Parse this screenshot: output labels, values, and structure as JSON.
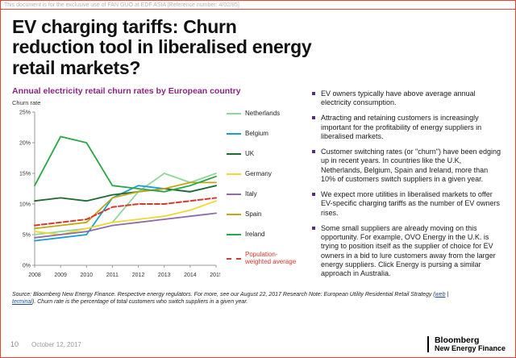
{
  "page": {
    "confidential_notice": "This document is for the exclusive use of FAN GUO at EDF ASIA [Reference number: 4/02/85]",
    "title": "EV charging tariffs: Churn reduction tool in liberalised energy retail markets?",
    "title_lines": [
      "EV charging tariffs: Churn",
      "reduction tool in liberalised energy",
      "retail markets?"
    ],
    "source": {
      "prefix": "Source: Bloomberg New Energy Finance. Respective energy regulators. For more, see our August 22, 2017 Research Note: European Utility Residential Retail Strategy (",
      "link1": "web",
      "separator": " | ",
      "link2": "terminal",
      "suffix": "). Churn rate is the percentage of total customers who switch suppliers in a given year."
    },
    "footer": {
      "page_number": "10",
      "date": "October 12, 2017",
      "brand_line1": "Bloomberg",
      "brand_line2": "New Energy Finance"
    }
  },
  "colors": {
    "accent_red": "#e8432d",
    "chart_title_purple": "#8d2483",
    "bullet_purple": "#5b2b7f"
  },
  "bullets": [
    "EV owners typically have above average annual electricity consumption.",
    "Attracting and retaining customers is increasingly important for the profitability of energy suppliers in liberalised markets.",
    "Customer switching rates (or \"churn\") have been edging up in recent years. In countries like the U.K, Netherlands, Belgium, Spain and Ireland, more than 10% of customers switch suppliers in a given year.",
    "We expect more utilities in liberalised markets to offer EV-specific charging tariffs as the number of EV owners rises.",
    "Some small suppliers are already moving on this opportunity. For example, OVO Energy in the U.K. is trying to position itself as the supplier of choice for EV owners in a bid to lure customers away from the larger energy suppliers. Click Energy is pursing a similar approach in Australia."
  ],
  "chart_data": {
    "type": "line",
    "title": "Annual electricity retail churn rates by European country",
    "ylabel": "Churn rate",
    "xlabel": "",
    "x": [
      2008,
      2009,
      2010,
      2011,
      2012,
      2013,
      2014,
      2015
    ],
    "ylim": [
      0,
      25
    ],
    "yticks": [
      "0%",
      "5%",
      "10%",
      "15%",
      "20%",
      "25%"
    ],
    "grid": false,
    "legend_position": "right",
    "series": [
      {
        "name": "Netherlands",
        "color": "#8ed79b",
        "dashed": false,
        "values": [
          5.0,
          5.5,
          6.0,
          7.0,
          12.0,
          15.0,
          13.5,
          15.0
        ]
      },
      {
        "name": "Belgium",
        "color": "#1b9dd9",
        "dashed": false,
        "values": [
          4.0,
          4.5,
          5.0,
          11.0,
          13.0,
          12.5,
          12.0,
          13.0
        ]
      },
      {
        "name": "UK",
        "color": "#1e6b30",
        "dashed": false,
        "values": [
          10.5,
          11.0,
          10.5,
          11.5,
          12.0,
          12.5,
          12.0,
          13.0
        ]
      },
      {
        "name": "Germany",
        "color": "#f2d72e",
        "dashed": false,
        "values": [
          5.5,
          5.0,
          6.0,
          7.0,
          7.5,
          8.0,
          9.0,
          10.5
        ]
      },
      {
        "name": "Italy",
        "color": "#8d6cab",
        "dashed": false,
        "values": [
          4.5,
          5.0,
          5.5,
          6.5,
          7.0,
          7.5,
          8.0,
          8.5
        ]
      },
      {
        "name": "Spain",
        "color": "#c3a614",
        "dashed": false,
        "values": [
          6.0,
          6.5,
          7.0,
          11.0,
          12.0,
          12.5,
          13.5,
          13.5
        ]
      },
      {
        "name": "Ireland",
        "color": "#2aa548",
        "dashed": false,
        "values": [
          13.0,
          21.0,
          20.0,
          13.0,
          12.5,
          12.0,
          13.0,
          14.5
        ]
      },
      {
        "name": "Population-weighted average",
        "color": "#d6392e",
        "dashed": true,
        "label_color": "#d6392e",
        "values": [
          6.5,
          7.0,
          7.5,
          9.5,
          10.0,
          10.0,
          10.5,
          11.0
        ]
      }
    ]
  }
}
